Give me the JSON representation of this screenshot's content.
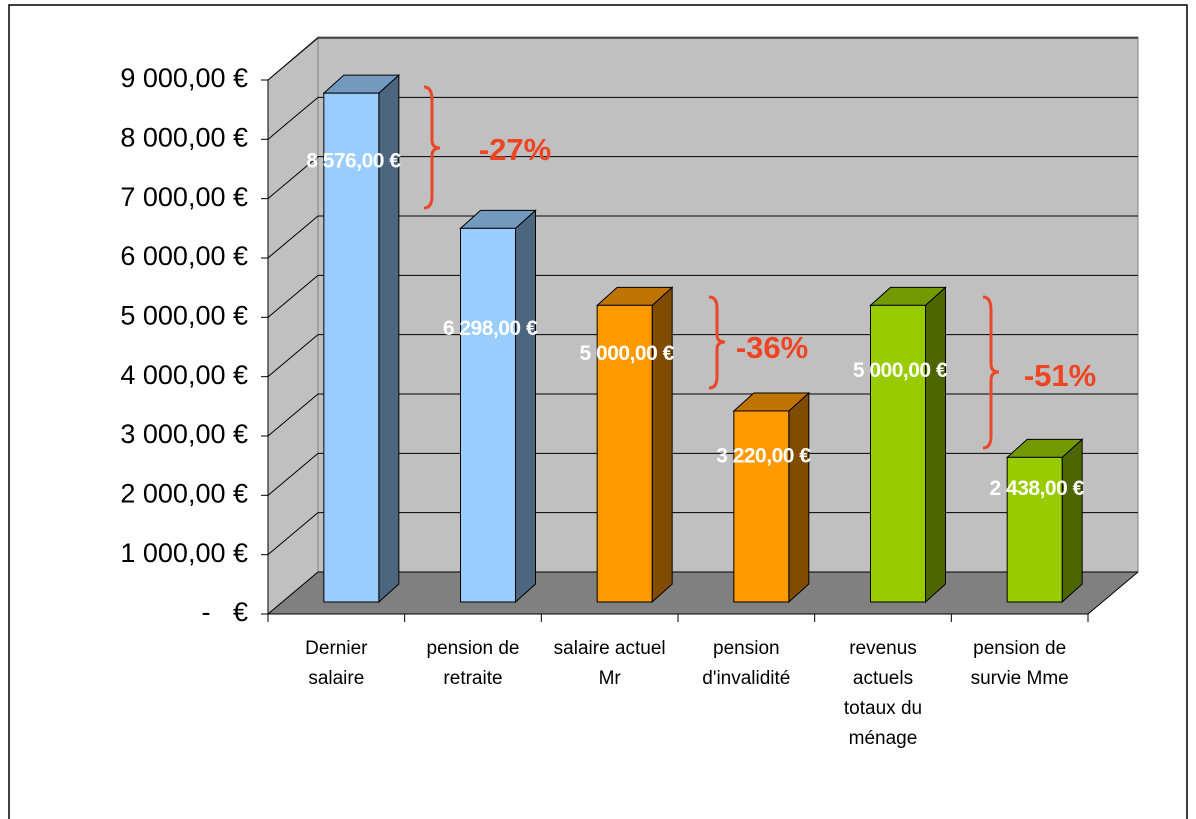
{
  "chart_data": {
    "type": "bar3d",
    "categories": [
      "Dernier\nsalaire",
      "pension de\nretraite",
      "salaire actuel\nMr",
      "pension\nd'invalidité",
      "revenus\nactuels\ntotaux du\nménage",
      "pension de\nsurvie  Mme"
    ],
    "values": [
      8576,
      6298,
      5000,
      3220,
      5000,
      2438
    ],
    "value_labels": [
      "8 576,00 €",
      "6 298,00 €",
      "5 000,00 €",
      "3 220,00 €",
      "5 000,00 €",
      "2 438,00 €"
    ],
    "colors": [
      "#99ccff",
      "#99ccff",
      "#ff9900",
      "#ff9900",
      "#99cc00",
      "#99cc00"
    ],
    "ylim": [
      0,
      9000
    ],
    "yticks": [
      {
        "value": 0,
        "label": "-   €"
      },
      {
        "value": 1000,
        "label": "1 000,00 €"
      },
      {
        "value": 2000,
        "label": "2 000,00 €"
      },
      {
        "value": 3000,
        "label": "3 000,00 €"
      },
      {
        "value": 4000,
        "label": "4 000,00 €"
      },
      {
        "value": 5000,
        "label": "5 000,00 €"
      },
      {
        "value": 6000,
        "label": "6 000,00 €"
      },
      {
        "value": 7000,
        "label": "7 000,00 €"
      },
      {
        "value": 8000,
        "label": "8 000,00 €"
      },
      {
        "value": 9000,
        "label": "9 000,00 €"
      }
    ],
    "grid": true,
    "annotations": [
      "-27%",
      "-36%",
      "-51%"
    ]
  }
}
